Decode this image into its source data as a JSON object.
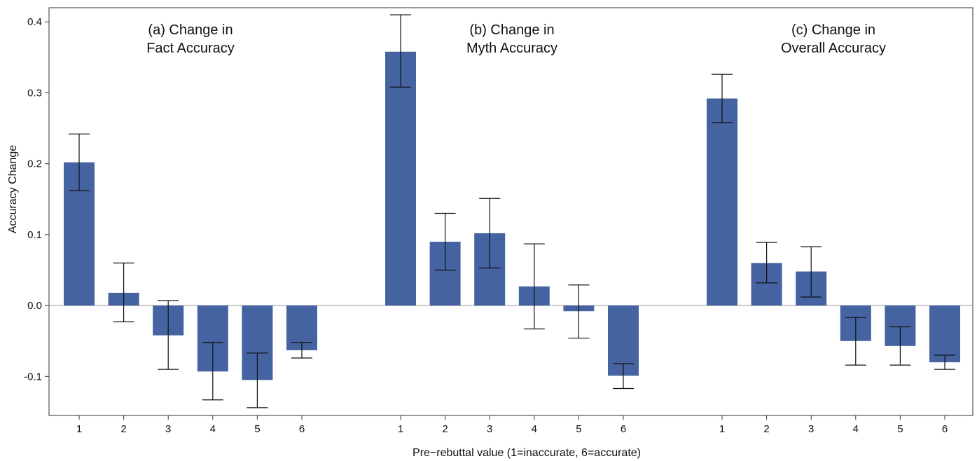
{
  "chart_data": {
    "type": "bar",
    "ylabel": "Accuracy Change",
    "xlabel": "Pre−rebuttal value (1=inaccurate, 6=accurate)",
    "ylim": [
      -0.155,
      0.42
    ],
    "yticks": [
      "-0.1",
      "0.0",
      "0.1",
      "0.2",
      "0.3",
      "0.4"
    ],
    "ytick_values": [
      -0.1,
      0.0,
      0.1,
      0.2,
      0.3,
      0.4
    ],
    "bar_color": "#4563a0",
    "zero_line_color": "#999999",
    "grid": false,
    "error_bars": true,
    "categories": [
      "1",
      "2",
      "3",
      "4",
      "5",
      "6"
    ],
    "panels": [
      {
        "title_line1": "(a) Change in",
        "title_line2": "Fact Accuracy",
        "values": [
          0.202,
          0.018,
          -0.042,
          -0.093,
          -0.105,
          -0.063
        ],
        "err_low": [
          0.162,
          -0.023,
          -0.09,
          -0.133,
          -0.144,
          -0.074
        ],
        "err_high": [
          0.242,
          0.06,
          0.007,
          -0.052,
          -0.067,
          -0.052
        ]
      },
      {
        "title_line1": "(b) Change in",
        "title_line2": "Myth Accuracy",
        "values": [
          0.358,
          0.09,
          0.102,
          0.027,
          -0.008,
          -0.099
        ],
        "err_low": [
          0.308,
          0.05,
          0.053,
          -0.033,
          -0.046,
          -0.117
        ],
        "err_high": [
          0.41,
          0.13,
          0.151,
          0.087,
          0.029,
          -0.082
        ]
      },
      {
        "title_line1": "(c) Change in",
        "title_line2": "Overall Accuracy",
        "values": [
          0.292,
          0.06,
          0.048,
          -0.05,
          -0.057,
          -0.08
        ],
        "err_low": [
          0.258,
          0.032,
          0.012,
          -0.084,
          -0.084,
          -0.09
        ],
        "err_high": [
          0.326,
          0.089,
          0.083,
          -0.017,
          -0.03,
          -0.07
        ]
      }
    ]
  }
}
